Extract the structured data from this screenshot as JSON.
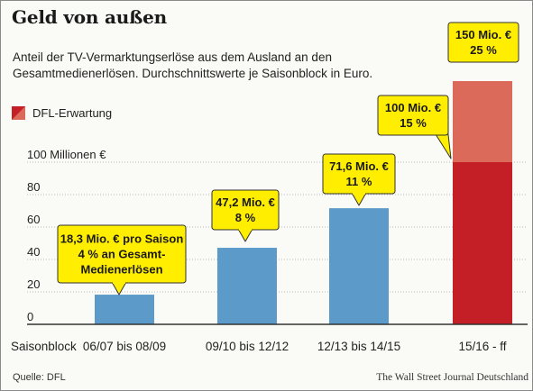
{
  "header": {
    "title": "Geld von außen",
    "subtitle": "Anteil der TV-Vermarktungserlöse aus dem Ausland an den Gesamtmedienerlösen. Durchschnittswerte je Saisonblock in Euro."
  },
  "footer": {
    "source": "Quelle: DFL",
    "credit": "The Wall Street Journal Deutschland"
  },
  "colors": {
    "bar": "#5b9ac9",
    "actual_last": "#c41e26",
    "forecast": "#dc6a5b",
    "callout": "#ffee00",
    "axis": "#333333",
    "grid": "#b9b9b9"
  },
  "chart_data": {
    "type": "bar",
    "stacked": true,
    "x_axis_title": "Saisonblock",
    "categories": [
      "06/07 bis 08/09",
      "09/10 bis 12/12",
      "12/13 bis 14/15",
      "15/16 - ff"
    ],
    "ylim": [
      0,
      150
    ],
    "yticks": [
      0,
      20,
      40,
      60,
      80,
      100
    ],
    "ytick_labels": [
      "0",
      "20",
      "40",
      "60",
      "80",
      "100 Millionen €"
    ],
    "grid": true,
    "series": [
      {
        "values": [
          18.3,
          47.2,
          71.6,
          100
        ]
      },
      {
        "name": "DFL-Erwartung",
        "values": [
          0,
          0,
          0,
          50
        ]
      }
    ],
    "legend": {
      "entries": [
        "DFL-Erwartung"
      ],
      "position": "left"
    },
    "annotations": [
      {
        "category": "06/07 bis 08/09",
        "lines": [
          "18,3 Mio. € pro Saison",
          "4 % an Gesamt-",
          "Medienerlösen"
        ]
      },
      {
        "category": "09/10 bis 12/12",
        "lines": [
          "47,2 Mio. €",
          "8 %"
        ]
      },
      {
        "category": "12/13 bis 14/15",
        "lines": [
          "71,6 Mio. €",
          "11 %"
        ]
      },
      {
        "category": "15/16 - ff",
        "lines": [
          "100 Mio. €",
          "15 %"
        ]
      },
      {
        "category": "15/16 - ff",
        "lines": [
          "150 Mio. €",
          "25 %"
        ]
      }
    ]
  }
}
